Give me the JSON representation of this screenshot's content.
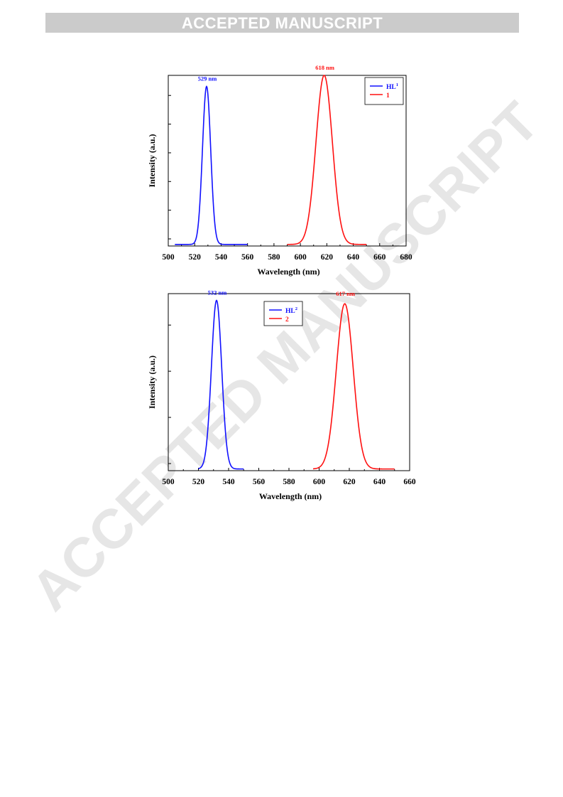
{
  "header": {
    "banner": "ACCEPTED MANUSCRIPT"
  },
  "watermark": {
    "text": "ACCEPTED MANUSCRIPT",
    "color": "#e6e6e6"
  },
  "colors": {
    "blue": "#1010ff",
    "red": "#ff1010"
  },
  "chart_data": [
    {
      "type": "line",
      "xlabel": "Wavelength (nm)",
      "ylabel": "Intensity (a.u.)",
      "xlim": [
        500,
        680
      ],
      "xticks": [
        500,
        520,
        540,
        560,
        580,
        600,
        620,
        640,
        660,
        680
      ],
      "ylim": [
        0,
        1.08
      ],
      "yticks_count": 6,
      "grid": false,
      "legend": {
        "position": "top-right"
      },
      "series": [
        {
          "name": "HL",
          "name_sup": "1",
          "color": "#1010ff",
          "peak": 529,
          "sigma": 3.1,
          "amplitude": 1.0,
          "range": [
            505,
            560
          ],
          "peak_label": "529 nm"
        },
        {
          "name": "1",
          "name_sup": "",
          "color": "#ff1010",
          "peak": 618,
          "sigma": 6.2,
          "amplitude": 1.07,
          "range": [
            590,
            650
          ],
          "peak_label": "618 nm"
        }
      ]
    },
    {
      "type": "line",
      "xlabel": "Wavelength (nm)",
      "ylabel": "Intensity (a.u.)",
      "xlim": [
        500,
        660
      ],
      "xticks": [
        500,
        520,
        540,
        560,
        580,
        600,
        620,
        640,
        660
      ],
      "ylim": [
        0,
        1.05
      ],
      "yticks_count": 4,
      "grid": false,
      "legend": {
        "position": "top-center"
      },
      "series": [
        {
          "name": "HL",
          "name_sup": "2",
          "color": "#1010ff",
          "peak": 532,
          "sigma": 3.4,
          "amplitude": 1.0,
          "range": [
            520,
            550
          ],
          "peak_label": "532 nm"
        },
        {
          "name": "2",
          "name_sup": "",
          "color": "#ff1010",
          "peak": 617,
          "sigma": 5.6,
          "amplitude": 0.98,
          "range": [
            596,
            650
          ],
          "peak_label": "617 nm"
        }
      ]
    }
  ]
}
